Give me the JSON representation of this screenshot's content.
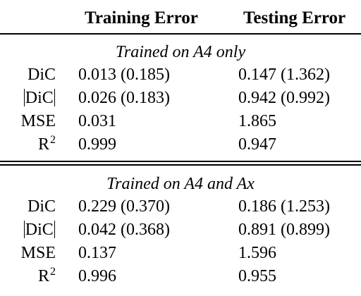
{
  "headers": {
    "training": "Training Error",
    "testing": "Testing Error"
  },
  "sections": [
    {
      "title": "Trained on A4 only",
      "rows": [
        {
          "label": "DiC",
          "abs": false,
          "sup": "",
          "train": "0.013 (0.185)",
          "test": "0.147 (1.362)"
        },
        {
          "label": "DiC",
          "abs": true,
          "sup": "",
          "train": "0.026 (0.183)",
          "test": "0.942 (0.992)"
        },
        {
          "label": "MSE",
          "abs": false,
          "sup": "",
          "train": "0.031",
          "test": "1.865"
        },
        {
          "label": "R",
          "abs": false,
          "sup": "2",
          "train": "0.999",
          "test": "0.947"
        }
      ]
    },
    {
      "title": "Trained on A4 and Ax",
      "rows": [
        {
          "label": "DiC",
          "abs": false,
          "sup": "",
          "train": "0.229 (0.370)",
          "test": "0.186 (1.253)"
        },
        {
          "label": "DiC",
          "abs": true,
          "sup": "",
          "train": "0.042 (0.368)",
          "test": "0.891 (0.899)"
        },
        {
          "label": "MSE",
          "abs": false,
          "sup": "",
          "train": "0.137",
          "test": "1.596"
        },
        {
          "label": "R",
          "abs": false,
          "sup": "2",
          "train": "0.996",
          "test": "0.955"
        }
      ]
    }
  ]
}
